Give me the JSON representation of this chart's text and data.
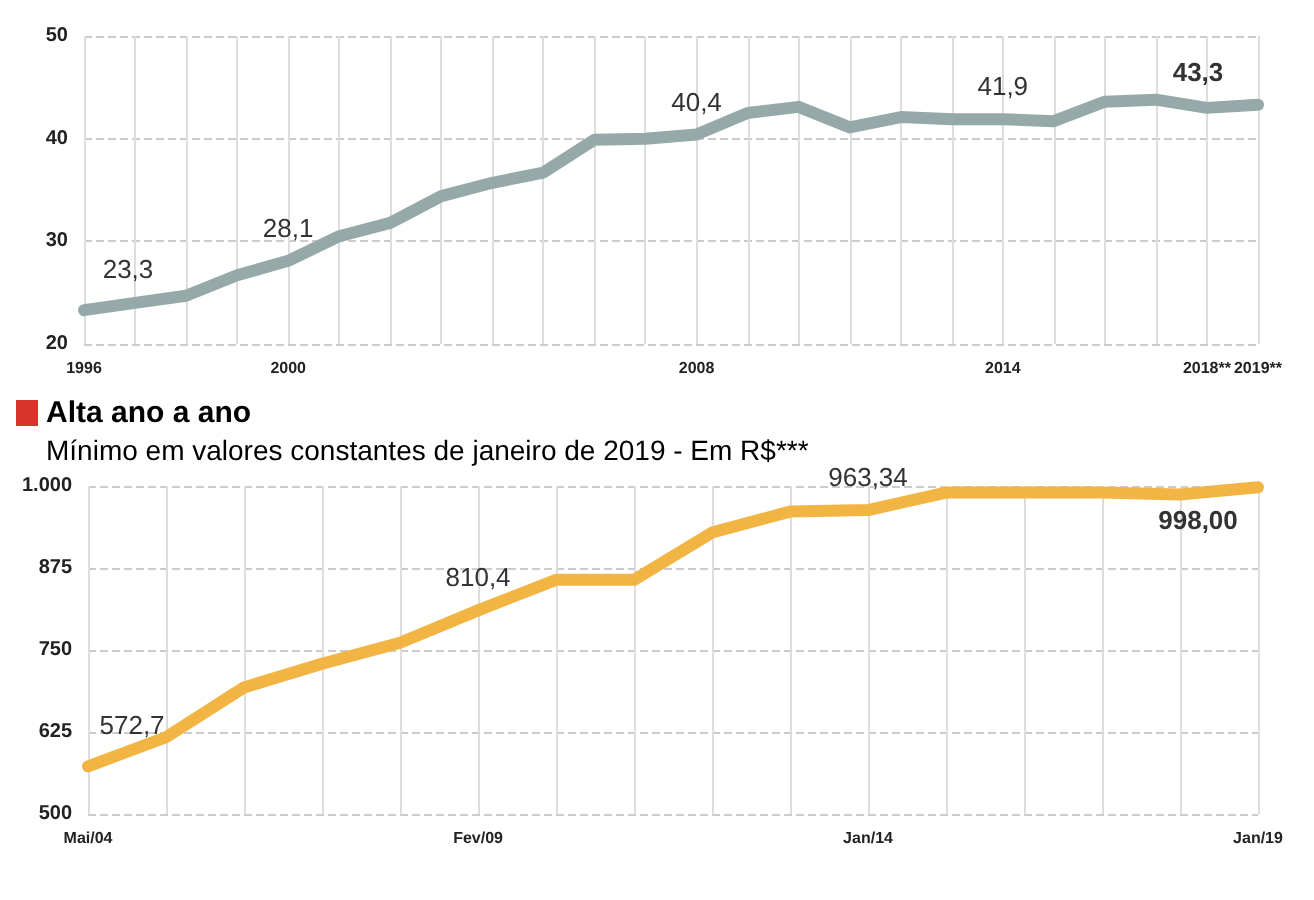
{
  "chart_data": [
    {
      "type": "line",
      "categories": [
        "1996",
        null,
        null,
        null,
        "2000",
        null,
        null,
        null,
        null,
        null,
        null,
        null,
        "2008",
        null,
        null,
        null,
        null,
        null,
        "2014",
        null,
        null,
        null,
        "2018**",
        "2019**"
      ],
      "series": [
        {
          "color": "#95a9a8",
          "values": [
            23.3,
            24.0,
            24.7,
            26.7,
            28.1,
            30.5,
            31.8,
            34.4,
            35.7,
            36.7,
            39.9,
            40.0,
            40.4,
            42.5,
            43.1,
            41.1,
            42.1,
            41.9,
            41.9,
            41.7,
            43.6,
            43.8,
            43.0,
            43.3
          ],
          "value_labels": [
            "23,3",
            null,
            null,
            null,
            "28,1",
            null,
            null,
            null,
            null,
            null,
            null,
            null,
            "40,4",
            null,
            null,
            null,
            null,
            null,
            "41,9",
            null,
            null,
            null,
            null,
            "43,3"
          ]
        }
      ],
      "ylim": [
        20,
        50
      ],
      "yticks": [
        20,
        30,
        40,
        50
      ],
      "grid": true
    },
    {
      "type": "line",
      "title": "Alta ano a ano",
      "subtitle": "Mínimo em valores constantes de janeiro de 2019  - Em R$***",
      "categories": [
        "Mai/04",
        null,
        null,
        null,
        null,
        "Fev/09",
        null,
        null,
        null,
        null,
        "Jan/14",
        null,
        null,
        null,
        null,
        "Jan/19"
      ],
      "series": [
        {
          "color": "#f2b544",
          "values": [
            572.7,
            617,
            693,
            729,
            761,
            810.4,
            857,
            857,
            929,
            961,
            963.34,
            990,
            990,
            990,
            987,
            998.0
          ],
          "value_labels": [
            "572,7",
            null,
            null,
            null,
            null,
            "810,4",
            null,
            null,
            null,
            null,
            "963,34",
            null,
            null,
            null,
            null,
            "998,00"
          ]
        }
      ],
      "ylim": [
        500,
        1000
      ],
      "yticks": [
        500,
        625,
        750,
        875,
        {
          "value": 1000,
          "label": "1.000"
        }
      ],
      "grid": true
    }
  ]
}
